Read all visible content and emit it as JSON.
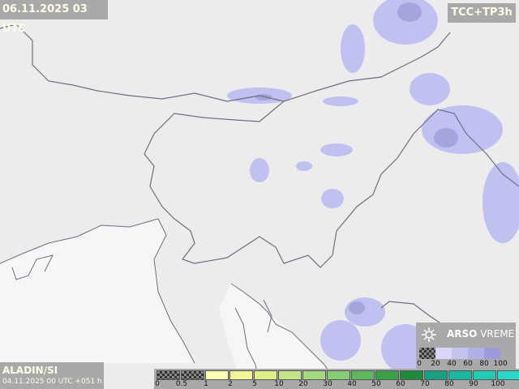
{
  "header": {
    "valid_time": "06.11.2025 03 UTC",
    "product": "TCC+TP3h"
  },
  "model": {
    "name": "ALADIN/SI",
    "run": "04.11.2025 00 UTC +051 h"
  },
  "brand": {
    "name": "ARSO",
    "suffix": "VREME"
  },
  "cloud_legend": {
    "labels": [
      "0",
      "20",
      "40",
      "60",
      "80",
      "100"
    ]
  },
  "precip_legend": {
    "labels": [
      "0",
      "0.5",
      "1",
      "2",
      "5",
      "10",
      "20",
      "30",
      "40",
      "50",
      "60",
      "70",
      "80",
      "90",
      "100"
    ]
  }
}
